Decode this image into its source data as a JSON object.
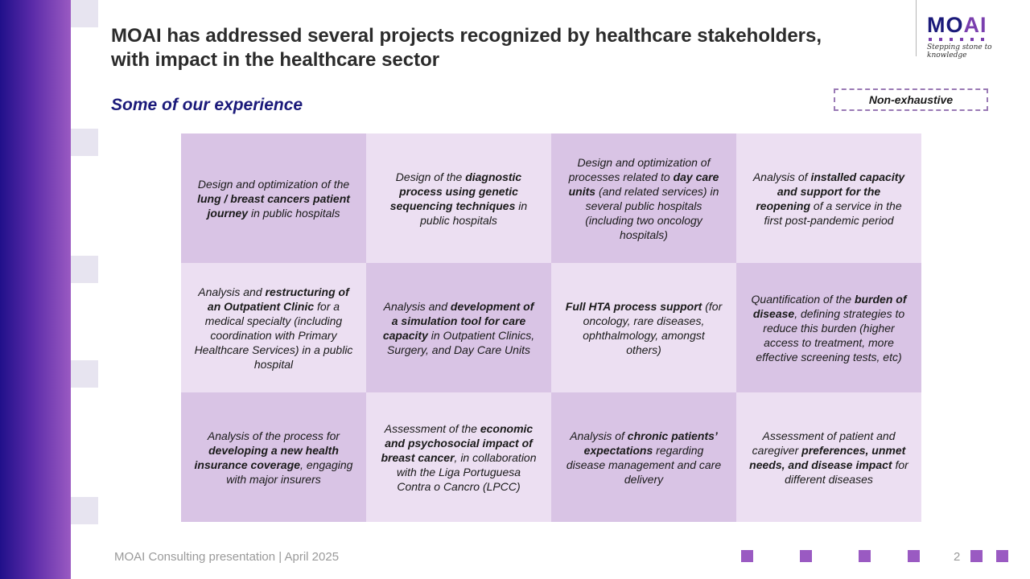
{
  "slide": {
    "title_line1": "MOAI has addressed several projects recognized by healthcare stakeholders,",
    "title_line2": "with impact in the healthcare sector",
    "subtitle": "Some of our experience",
    "tag": "Non-exhaustive",
    "footer": "MOAI Consulting presentation | April 2025",
    "page_number": "2"
  },
  "logo": {
    "name_part1": "MO",
    "name_part2": "AI",
    "tagline": "Stepping stone to knowledge"
  },
  "colors": {
    "brand_navy": "#1b1a7a",
    "brand_purple": "#7a3fae",
    "cell_dark": "#d9c4e5",
    "cell_light": "#ecdff2"
  },
  "cells": [
    {
      "shade": "dark",
      "parts": [
        [
          "Design and optimization of the ",
          false
        ],
        [
          "lung / breast cancers patient journey",
          true
        ],
        [
          " in public hospitals",
          false
        ]
      ]
    },
    {
      "shade": "light",
      "parts": [
        [
          "Design of the ",
          false
        ],
        [
          "diagnostic process using genetic sequencing techniques",
          true
        ],
        [
          " in public hospitals",
          false
        ]
      ]
    },
    {
      "shade": "dark",
      "parts": [
        [
          "Design and optimization of processes related to ",
          false
        ],
        [
          "day care units",
          true
        ],
        [
          " (and related services) in several public hospitals (including two oncology hospitals)",
          false
        ]
      ]
    },
    {
      "shade": "light",
      "parts": [
        [
          "Analysis of ",
          false
        ],
        [
          "installed capacity and support for the reopening",
          true
        ],
        [
          " of a service in the first post-pandemic period",
          false
        ]
      ]
    },
    {
      "shade": "light",
      "parts": [
        [
          "Analysis and ",
          false
        ],
        [
          "restructuring of an Outpatient Clinic",
          true
        ],
        [
          " for a medical specialty (including coordination with Primary Healthcare Services) in a public hospital",
          false
        ]
      ]
    },
    {
      "shade": "dark",
      "parts": [
        [
          "Analysis and ",
          false
        ],
        [
          "development of a simulation tool for care capacity",
          true
        ],
        [
          " in Outpatient Clinics, Surgery, and Day Care Units",
          false
        ]
      ]
    },
    {
      "shade": "light",
      "parts": [
        [
          "Full HTA process support",
          true
        ],
        [
          " (for oncology, rare diseases, ophthalmology, amongst others)",
          false
        ]
      ]
    },
    {
      "shade": "dark",
      "parts": [
        [
          "Quantification of the ",
          false
        ],
        [
          "burden of disease",
          true
        ],
        [
          ", defining strategies to reduce this burden (higher access to treatment, more effective screening tests, etc)",
          false
        ]
      ]
    },
    {
      "shade": "dark",
      "parts": [
        [
          "Analysis of the process for ",
          false
        ],
        [
          "developing a new health insurance coverage",
          true
        ],
        [
          ", engaging with  major insurers",
          false
        ]
      ]
    },
    {
      "shade": "light",
      "parts": [
        [
          "Assessment of the ",
          false
        ],
        [
          "economic and psychosocial impact of breast cancer",
          true
        ],
        [
          ", in collaboration with the Liga Portuguesa Contra o Cancro (LPCC)",
          false
        ]
      ]
    },
    {
      "shade": "dark",
      "parts": [
        [
          "Analysis of ",
          false
        ],
        [
          "chronic patients’ expectations",
          true
        ],
        [
          " regarding disease management and care delivery",
          false
        ]
      ]
    },
    {
      "shade": "light",
      "parts": [
        [
          "Assessment of patient and caregiver ",
          false
        ],
        [
          "preferences, unmet needs, and disease impact",
          true
        ],
        [
          " for different diseases",
          false
        ]
      ]
    }
  ]
}
